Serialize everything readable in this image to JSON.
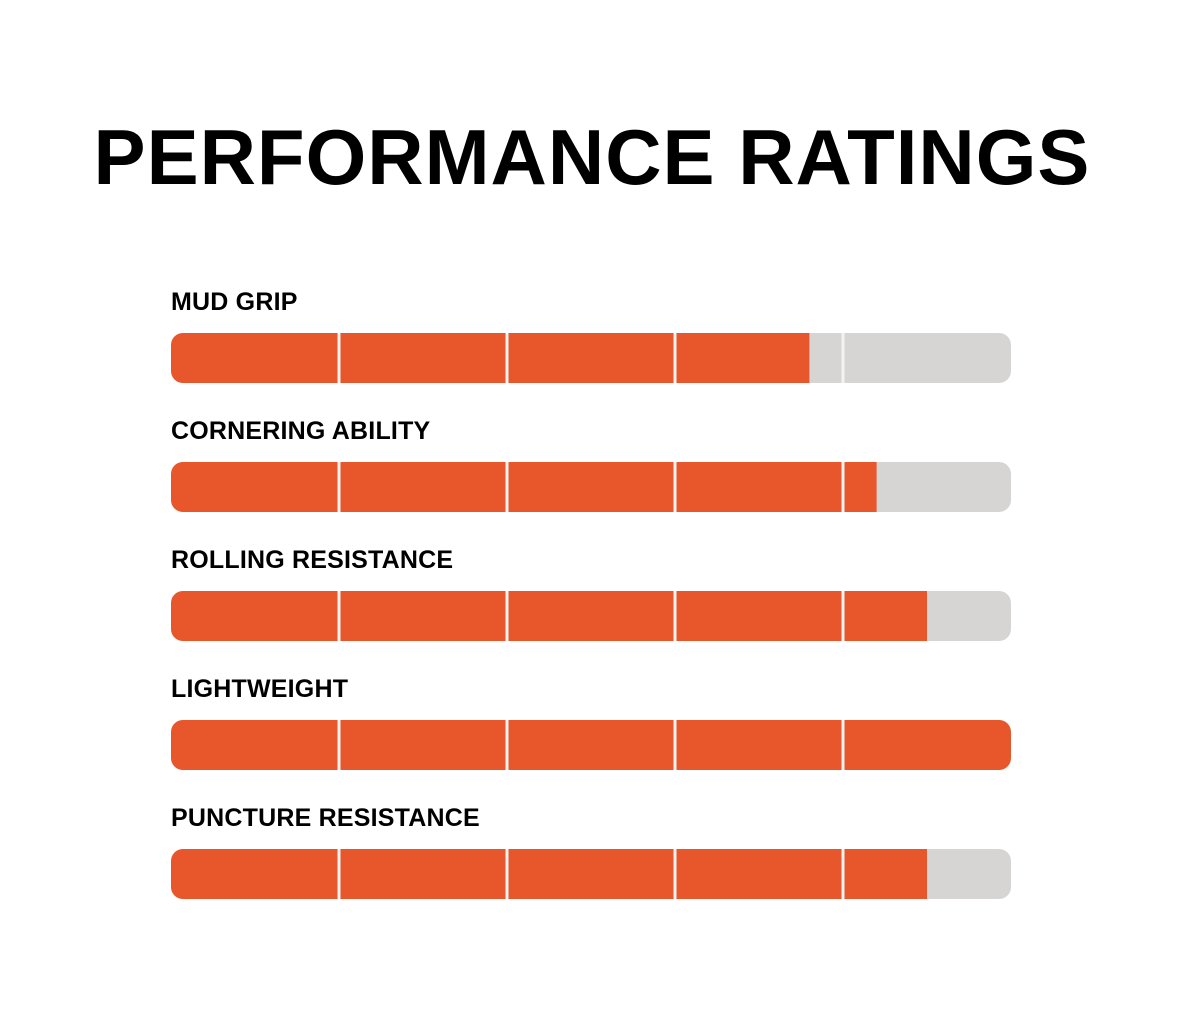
{
  "title": "PERFORMANCE RATINGS",
  "colors": {
    "fill": "#e8572c",
    "track": "#d6d5d3",
    "divider": "#f2f2f2"
  },
  "chart_data": {
    "type": "bar",
    "orientation": "horizontal",
    "segments": 5,
    "xlim": [
      0,
      5
    ],
    "categories": [
      "MUD GRIP",
      "CORNERING ABILITY",
      "ROLLING RESISTANCE",
      "LIGHTWEIGHT",
      "PUNCTURE RESISTANCE"
    ],
    "values": [
      3.8,
      4.2,
      4.5,
      5,
      4.5
    ]
  }
}
